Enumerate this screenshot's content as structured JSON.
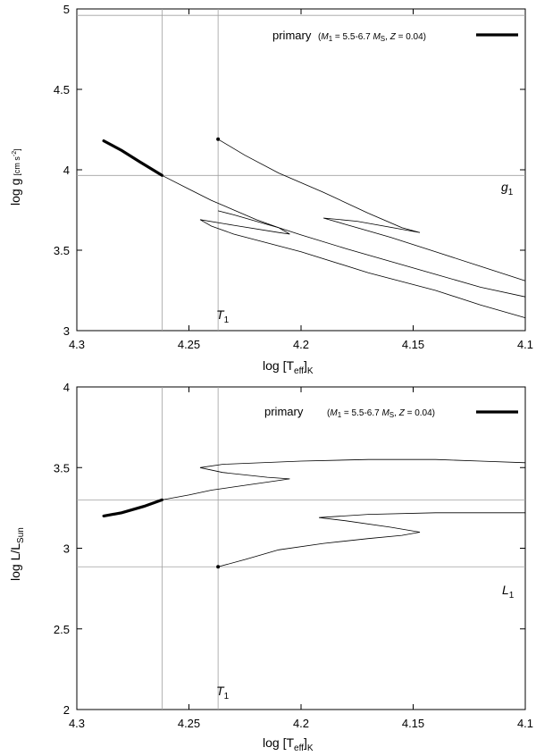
{
  "chart_data": [
    {
      "type": "line",
      "id": "top",
      "xlabel": "log [T",
      "xlabel_sub": "eff",
      "xlabel_tail": "]",
      "xlabel_sub2": "K",
      "ylabel": "log g",
      "ylabel_unit": "[cm s",
      "ylabel_unit_sup": "-2",
      "ylabel_unit_tail": "]",
      "xlim": [
        4.3,
        4.1
      ],
      "ylim": [
        3.0,
        5.0
      ],
      "xticks": [
        4.3,
        4.25,
        4.2,
        4.15,
        4.1
      ],
      "xtick_labels": [
        "4.3",
        "4.25",
        "4.2",
        "4.15",
        "4.1"
      ],
      "yticks": [
        3.0,
        3.5,
        4.0,
        4.5,
        5.0
      ],
      "ytick_labels": [
        "3",
        "3.5",
        "4",
        "4.5",
        "5"
      ],
      "legend": {
        "label": "primary",
        "detail_open": "(",
        "m1": "M",
        "m1_sub": "1",
        "range": " = 5.5-6.7 ",
        "ms": "M",
        "ms_sub": "S",
        "z_sep": ", ",
        "z": "Z",
        "z_value": " = 0.04)",
        "position": "top-right"
      },
      "ref_x": [
        4.262,
        4.237
      ],
      "ref_y": [
        3.965,
        4.96
      ],
      "annotation_T": "T",
      "annotation_T_sub": "1",
      "annotation_V": "g",
      "annotation_V_sub": "1",
      "primary_series": {
        "name": "primary",
        "x": [
          4.288,
          4.28,
          4.272,
          4.262
        ],
        "y": [
          4.18,
          4.12,
          4.05,
          3.965
        ]
      },
      "track_series": [
        {
          "name": "track-main",
          "x": [
            4.262,
            4.25,
            4.24,
            4.23,
            4.22,
            4.21,
            4.2,
            4.18,
            4.16,
            4.14,
            4.12,
            4.1
          ],
          "y": [
            3.965,
            3.88,
            3.81,
            3.75,
            3.69,
            3.64,
            3.595,
            3.51,
            3.43,
            3.35,
            3.27,
            3.21
          ]
        },
        {
          "name": "track-loop-1",
          "x": [
            4.237,
            4.23,
            4.22,
            4.21,
            4.205,
            4.21,
            4.23,
            4.245,
            4.24,
            4.23,
            4.2,
            4.17,
            4.14,
            4.12,
            4.1
          ],
          "y": [
            3.745,
            3.72,
            3.68,
            3.64,
            3.6,
            3.61,
            3.655,
            3.69,
            3.65,
            3.6,
            3.49,
            3.36,
            3.25,
            3.16,
            3.08
          ]
        },
        {
          "name": "track-loop-2",
          "x": [
            4.237,
            4.225,
            4.21,
            4.19,
            4.17,
            4.155,
            4.147,
            4.155,
            4.175,
            4.19,
            4.18,
            4.16,
            4.14,
            4.12,
            4.1
          ],
          "y": [
            4.19,
            4.09,
            3.98,
            3.86,
            3.73,
            3.64,
            3.61,
            3.63,
            3.68,
            3.7,
            3.66,
            3.58,
            3.49,
            3.4,
            3.31
          ]
        }
      ],
      "start_dot": {
        "x": 4.237,
        "y": 4.19
      }
    },
    {
      "type": "line",
      "id": "bottom",
      "xlabel": "log [T",
      "xlabel_sub": "eff",
      "xlabel_tail": "]",
      "xlabel_sub2": "K",
      "ylabel": "log L/L",
      "ylabel_sub": "Sun",
      "xlim": [
        4.3,
        4.1
      ],
      "ylim": [
        2.0,
        4.0
      ],
      "xticks": [
        4.3,
        4.25,
        4.2,
        4.15,
        4.1
      ],
      "xtick_labels": [
        "4.3",
        "4.25",
        "4.2",
        "4.15",
        "4.1"
      ],
      "yticks": [
        2.0,
        2.5,
        3.0,
        3.5,
        4.0
      ],
      "ytick_labels": [
        "2",
        "2.5",
        "3",
        "3.5",
        "4"
      ],
      "legend": {
        "label": "primary",
        "detail_open": "(",
        "m1": "M",
        "m1_sub": "1",
        "range": " = 5.5-6.7 ",
        "ms": "M",
        "ms_sub": "S",
        "z_sep": ", ",
        "z": "Z",
        "z_value": " = 0.04)",
        "position": "top-right"
      },
      "ref_x": [
        4.262,
        4.237
      ],
      "ref_y": [
        3.3,
        2.885
      ],
      "annotation_T": "T",
      "annotation_T_sub": "1",
      "annotation_V": "L",
      "annotation_V_sub": "1",
      "primary_series": {
        "name": "primary",
        "x": [
          4.288,
          4.28,
          4.27,
          4.262
        ],
        "y": [
          3.2,
          3.22,
          3.26,
          3.3
        ]
      },
      "track_series": [
        {
          "name": "track-upper",
          "x": [
            4.262,
            4.25,
            4.24,
            4.23,
            4.215,
            4.205,
            4.215,
            4.235,
            4.245,
            4.235,
            4.2,
            4.17,
            4.14,
            4.12,
            4.1
          ],
          "y": [
            3.3,
            3.33,
            3.36,
            3.38,
            3.41,
            3.43,
            3.44,
            3.47,
            3.5,
            3.52,
            3.54,
            3.55,
            3.55,
            3.54,
            3.53
          ]
        },
        {
          "name": "track-lower",
          "x": [
            4.237,
            4.225,
            4.21,
            4.19,
            4.17,
            4.155,
            4.147,
            4.16,
            4.18,
            4.192,
            4.17,
            4.14,
            4.12,
            4.1
          ],
          "y": [
            2.885,
            2.93,
            2.99,
            3.03,
            3.06,
            3.08,
            3.1,
            3.13,
            3.17,
            3.19,
            3.21,
            3.22,
            3.22,
            3.22
          ]
        }
      ],
      "start_dot": {
        "x": 4.237,
        "y": 2.885
      }
    }
  ]
}
